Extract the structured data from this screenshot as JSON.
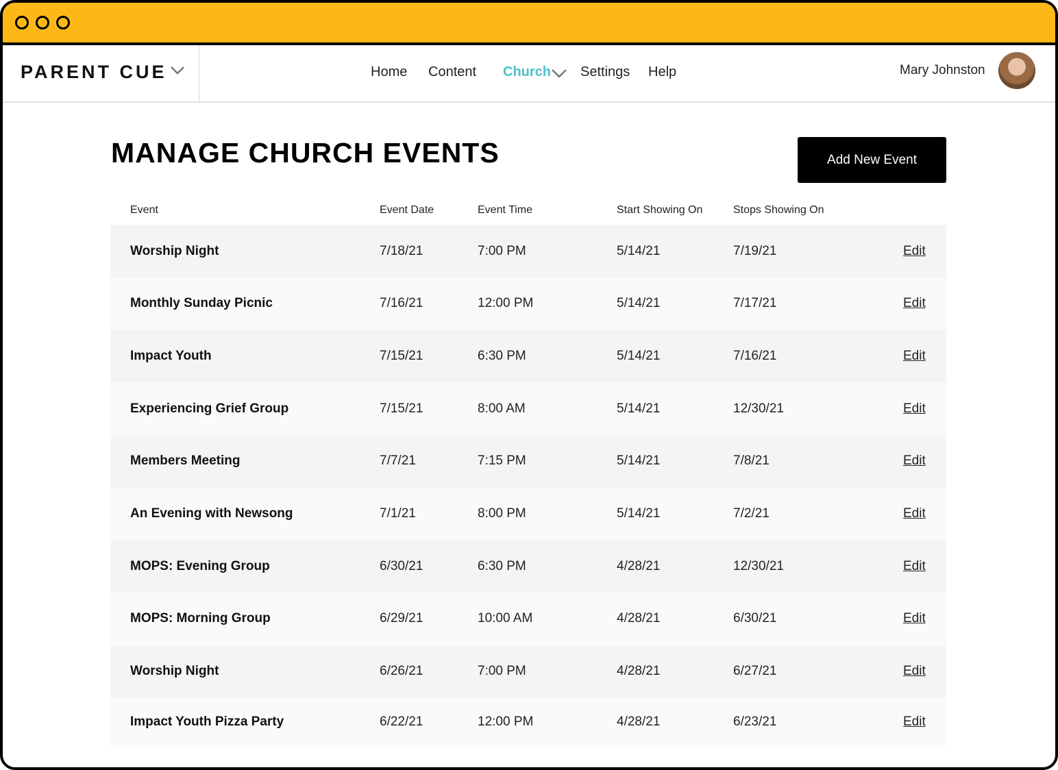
{
  "nav": {
    "logo": "PARENT CUE",
    "links": [
      "Home",
      "Content",
      "Church",
      "Settings",
      "Help"
    ],
    "active": "Church",
    "user": "Mary Johnston"
  },
  "header": {
    "title": "MANAGE CHURCH EVENTS",
    "button": "Add New Event"
  },
  "table": {
    "columns": [
      "Event",
      "Event Date",
      "Event Time",
      "Start Showing On",
      "Stops Showing On"
    ],
    "rows": [
      [
        "Worship Night",
        "7/18/21",
        "7:00 PM",
        "5/14/21",
        "7/19/21",
        "Edit"
      ],
      [
        "Monthly Sunday Picnic",
        "7/16/21",
        "12:00 PM",
        "5/14/21",
        "7/17/21",
        "Edit"
      ],
      [
        "Impact Youth",
        "7/15/21",
        "6:30 PM",
        "5/14/21",
        "7/16/21",
        "Edit"
      ],
      [
        "Experiencing Grief Group",
        "7/15/21",
        "8:00 AM",
        "5/14/21",
        "12/30/21",
        "Edit"
      ],
      [
        "Members Meeting",
        "7/7/21",
        "7:15 PM",
        "5/14/21",
        "7/8/21",
        "Edit"
      ],
      [
        "An Evening with Newsong",
        "7/1/21",
        "8:00 PM",
        "5/14/21",
        "7/2/21",
        "Edit"
      ],
      [
        "MOPS: Evening Group",
        "6/30/21",
        "6:30 PM",
        "4/28/21",
        "12/30/21",
        "Edit"
      ],
      [
        "MOPS: Morning Group",
        "6/29/21",
        "10:00 AM",
        "4/28/21",
        "6/30/21",
        "Edit"
      ],
      [
        "Worship Night",
        "6/26/21",
        "7:00 PM",
        "4/28/21",
        "6/27/21",
        "Edit"
      ],
      [
        "Impact Youth Pizza Party",
        "6/22/21",
        "12:00 PM",
        "4/28/21",
        "6/23/21",
        "Edit"
      ]
    ]
  }
}
